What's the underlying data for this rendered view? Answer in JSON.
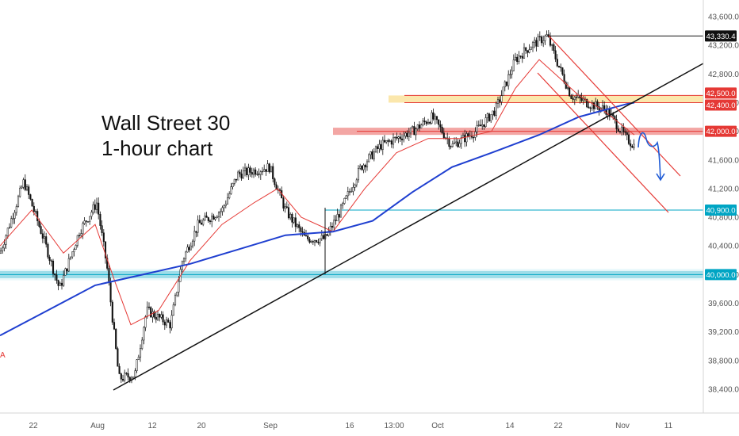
{
  "chart_data": {
    "type": "candlestick",
    "title_lines": [
      "Wall Street 30",
      "1-hour chart"
    ],
    "ylim": [
      38200,
      43800
    ],
    "y_ticks": [
      38400,
      38800,
      39200,
      39600,
      40000,
      40400,
      40800,
      41200,
      41600,
      42000,
      42400,
      42800,
      43200,
      43600
    ],
    "y_tick_labels": [
      "38,400.0",
      "38,800.0",
      "39,200.0",
      "39,600.0",
      "40,000.0",
      "40,400.0",
      "40,800.0",
      "41,200.0",
      "41,600.0",
      "42,000.0",
      "42,400.0",
      "42,800.0",
      "43,200.0",
      "43,600.0"
    ],
    "x_tick_labels": [
      "22",
      "Aug",
      "12",
      "20",
      "Sep",
      "16",
      "13:00",
      "Oct",
      "14",
      "22",
      "Nov",
      "11"
    ],
    "series": [
      {
        "name": "price",
        "points": [
          [
            0,
            40300
          ],
          [
            30,
            41300
          ],
          [
            55,
            40500
          ],
          [
            75,
            39800
          ],
          [
            100,
            40600
          ],
          [
            122,
            41000
          ],
          [
            135,
            40100
          ],
          [
            150,
            38550
          ],
          [
            170,
            38600
          ],
          [
            185,
            39500
          ],
          [
            215,
            39300
          ],
          [
            230,
            40200
          ],
          [
            250,
            40700
          ],
          [
            280,
            40900
          ],
          [
            300,
            41400
          ],
          [
            340,
            41500
          ],
          [
            360,
            40900
          ],
          [
            385,
            40500
          ],
          [
            410,
            40500
          ],
          [
            430,
            40900
          ],
          [
            455,
            41500
          ],
          [
            480,
            41800
          ],
          [
            520,
            42000
          ],
          [
            545,
            42200
          ],
          [
            570,
            41800
          ],
          [
            600,
            42000
          ],
          [
            625,
            42300
          ],
          [
            650,
            43000
          ],
          [
            670,
            43200
          ],
          [
            690,
            43330
          ],
          [
            705,
            42900
          ],
          [
            720,
            42500
          ],
          [
            740,
            42400
          ],
          [
            765,
            42300
          ],
          [
            790,
            41900
          ],
          [
            800,
            41800
          ]
        ]
      },
      {
        "name": "moving-average-short",
        "points": [
          [
            0,
            40400
          ],
          [
            40,
            40900
          ],
          [
            80,
            40300
          ],
          [
            120,
            40700
          ],
          [
            145,
            39900
          ],
          [
            165,
            39300
          ],
          [
            200,
            39500
          ],
          [
            240,
            40200
          ],
          [
            280,
            40700
          ],
          [
            320,
            41000
          ],
          [
            350,
            41200
          ],
          [
            380,
            40800
          ],
          [
            420,
            40600
          ],
          [
            460,
            41200
          ],
          [
            500,
            41700
          ],
          [
            540,
            41900
          ],
          [
            580,
            41900
          ],
          [
            620,
            42000
          ],
          [
            650,
            42600
          ],
          [
            680,
            43000
          ],
          [
            700,
            42800
          ],
          [
            730,
            42500
          ],
          [
            760,
            42300
          ],
          [
            800,
            41950
          ]
        ]
      },
      {
        "name": "moving-average-long",
        "points": [
          [
            0,
            39150
          ],
          [
            60,
            39500
          ],
          [
            120,
            39850
          ],
          [
            180,
            40000
          ],
          [
            240,
            40150
          ],
          [
            300,
            40350
          ],
          [
            360,
            40550
          ],
          [
            420,
            40600
          ],
          [
            470,
            40750
          ],
          [
            520,
            41150
          ],
          [
            570,
            41500
          ],
          [
            620,
            41700
          ],
          [
            680,
            41950
          ],
          [
            730,
            42200
          ],
          [
            790,
            42380
          ],
          [
            800,
            42400
          ]
        ]
      }
    ],
    "horizontal_levels": [
      {
        "value": 42500,
        "label": "42,500.0",
        "color": "#e53935"
      },
      {
        "value": 42400,
        "label": "42,400.0",
        "color": "#e53935"
      },
      {
        "value": 42000,
        "label": "42,000.0",
        "color": "#e53935"
      },
      {
        "value": 40900,
        "label": "40,900.0",
        "color": "#00a5c4"
      },
      {
        "value": 40000,
        "label": "40,000.0",
        "color": "#00a5c4"
      },
      {
        "value": 43330.4,
        "label": "43,330.4",
        "color": "#111111"
      }
    ],
    "zones": [
      {
        "from": 42400,
        "to": 42500,
        "color": "#f7c948"
      },
      {
        "from": 41950,
        "to": 42050,
        "color": "#e53935"
      },
      {
        "from": 39950,
        "to": 40050,
        "color": "#00a5c4"
      }
    ],
    "left_marker": "A"
  },
  "colors": {
    "price": "#111111",
    "ma_short": "#e53935",
    "ma_long": "#1f3fd0",
    "trendline": "#111111",
    "channel": "#e53935",
    "projection": "#1f5bd6"
  }
}
